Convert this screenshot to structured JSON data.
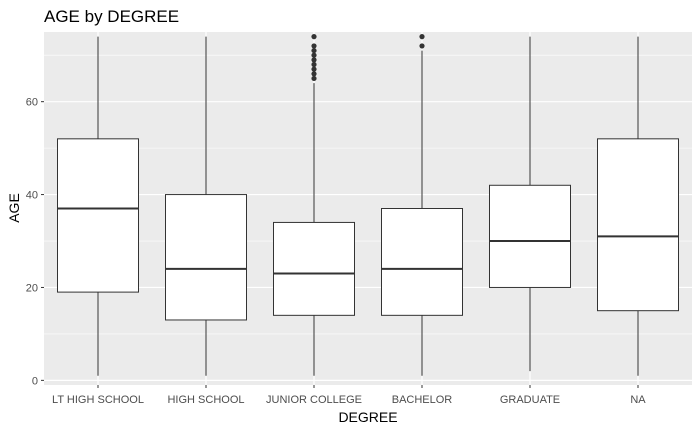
{
  "chart_data": {
    "type": "boxplot",
    "title": "AGE by DEGREE",
    "xlabel": "DEGREE",
    "ylabel": "AGE",
    "ylim": [
      -1,
      75
    ],
    "yticks": [
      0,
      20,
      40,
      60
    ],
    "grid": true,
    "colors": {
      "panel": "#ebebeb",
      "grid": "#ffffff",
      "box_fill": "#ffffff",
      "box_stroke": "#333333",
      "axis_text": "#4d4d4d",
      "title_text": "#000000"
    },
    "categories": [
      "LT HIGH SCHOOL",
      "HIGH SCHOOL",
      "JUNIOR COLLEGE",
      "BACHELOR",
      "GRADUATE",
      "NA"
    ],
    "boxes": [
      {
        "category": "LT HIGH SCHOOL",
        "min": 1,
        "q1": 19,
        "median": 37,
        "q3": 52,
        "max": 74,
        "outliers": []
      },
      {
        "category": "HIGH SCHOOL",
        "min": 1,
        "q1": 13,
        "median": 24,
        "q3": 40,
        "max": 74,
        "outliers": []
      },
      {
        "category": "JUNIOR COLLEGE",
        "min": 1,
        "q1": 14,
        "median": 23,
        "q3": 34,
        "max": 64,
        "outliers": [
          65,
          66,
          67,
          68,
          69,
          70,
          71,
          72,
          74
        ]
      },
      {
        "category": "BACHELOR",
        "min": 1,
        "q1": 14,
        "median": 24,
        "q3": 37,
        "max": 71,
        "outliers": [
          72,
          74
        ]
      },
      {
        "category": "GRADUATE",
        "min": 2,
        "q1": 20,
        "median": 30,
        "q3": 42,
        "max": 74,
        "outliers": []
      },
      {
        "category": "NA",
        "min": 1,
        "q1": 15,
        "median": 31,
        "q3": 52,
        "max": 74,
        "outliers": []
      }
    ]
  }
}
